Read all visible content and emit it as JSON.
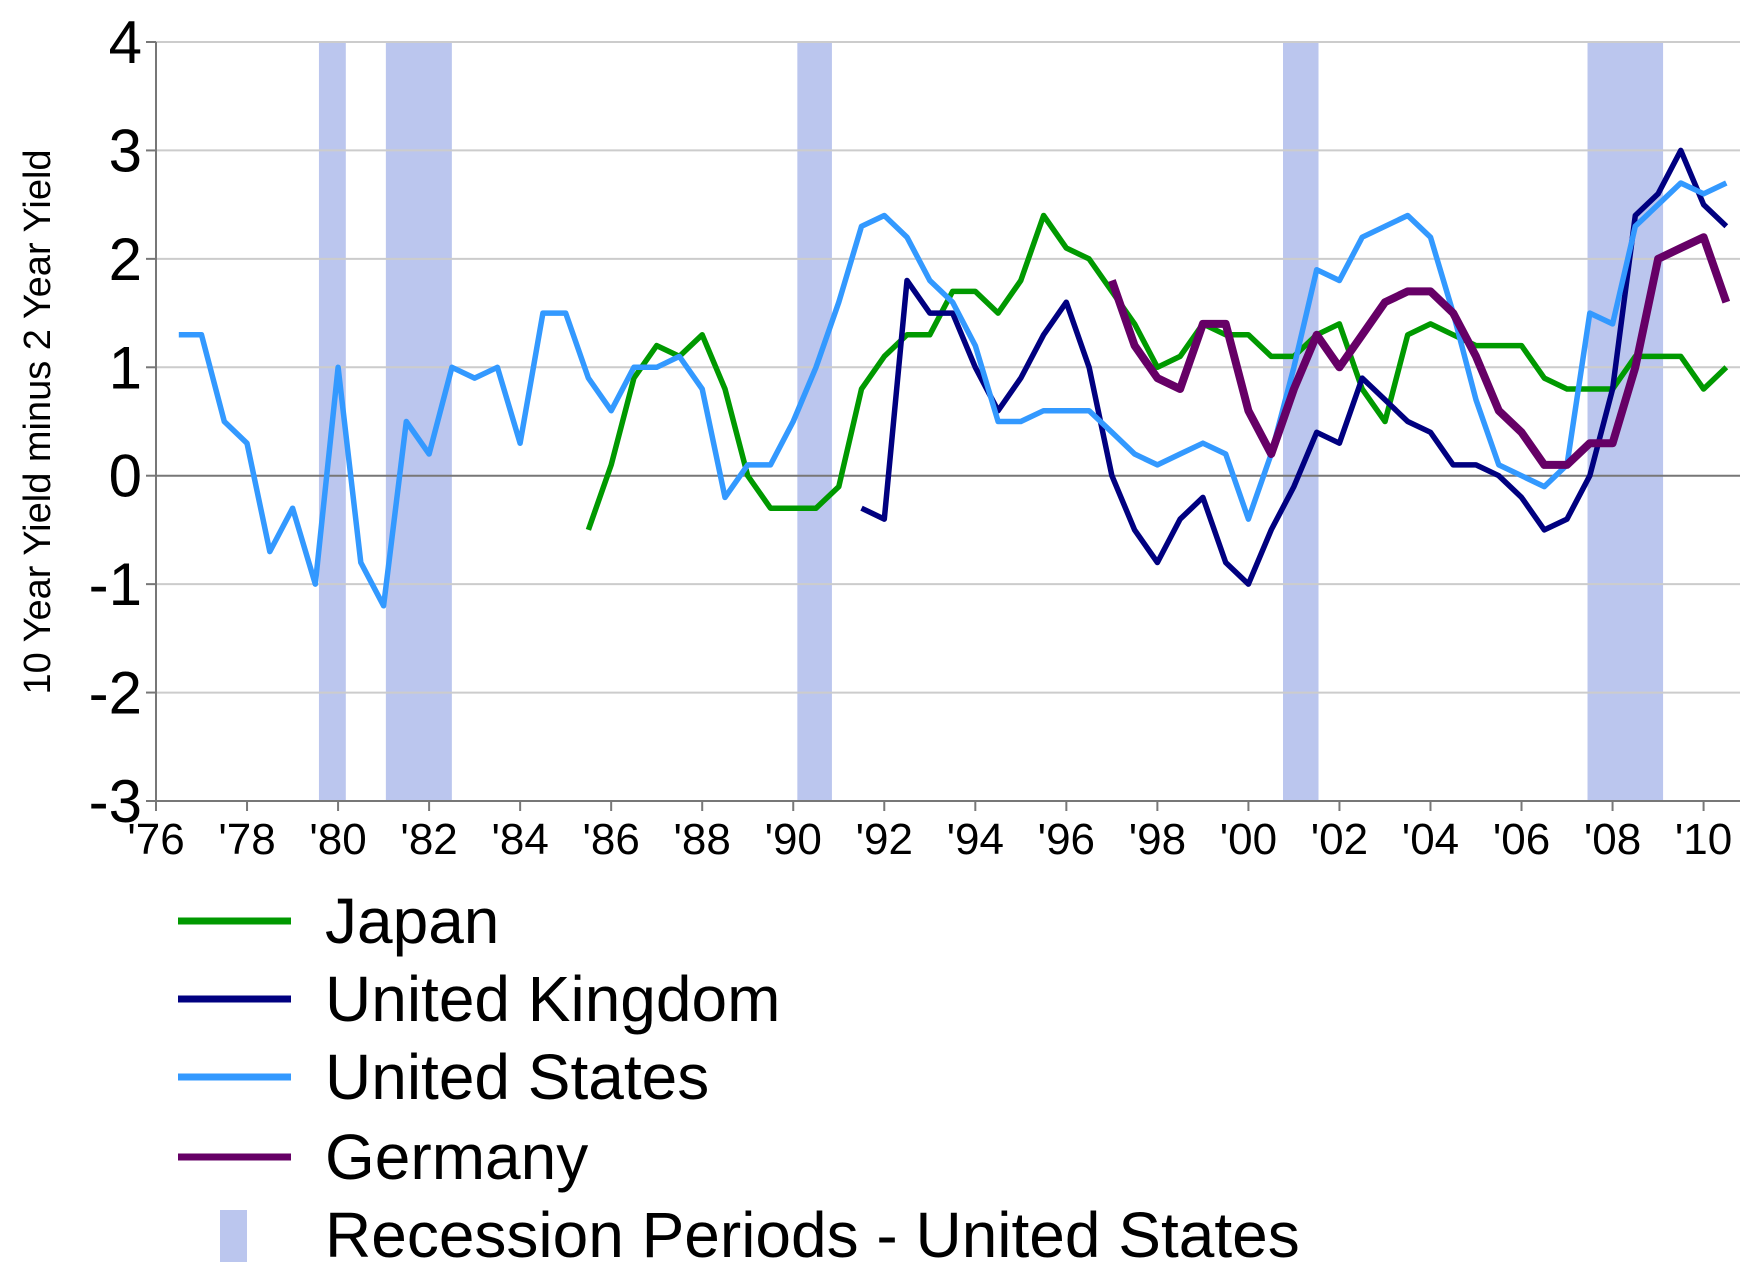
{
  "chart_data": {
    "type": "line",
    "y_label": "10 Year Yield minus 2 Year Yield",
    "xlim": [
      1976,
      2010.8
    ],
    "ylim": [
      -3,
      4
    ],
    "yticks": [
      -3,
      -2,
      -1,
      0,
      1,
      2,
      3,
      4
    ],
    "xticks": [
      {
        "value": 1976,
        "label": "'76"
      },
      {
        "value": 1978,
        "label": "'78"
      },
      {
        "value": 1980,
        "label": "'80"
      },
      {
        "value": 1982,
        "label": "'82"
      },
      {
        "value": 1984,
        "label": "'84"
      },
      {
        "value": 1986,
        "label": "'86"
      },
      {
        "value": 1988,
        "label": "'88"
      },
      {
        "value": 1990,
        "label": "'90"
      },
      {
        "value": 1992,
        "label": "'92"
      },
      {
        "value": 1994,
        "label": "'94"
      },
      {
        "value": 1996,
        "label": "'96"
      },
      {
        "value": 1998,
        "label": "'98"
      },
      {
        "value": 2000,
        "label": "'00"
      },
      {
        "value": 2002,
        "label": "'02"
      },
      {
        "value": 2004,
        "label": "'04"
      },
      {
        "value": 2006,
        "label": "'06"
      },
      {
        "value": 2008,
        "label": "'08"
      },
      {
        "value": 2010,
        "label": "'10"
      }
    ],
    "grid": true,
    "x": [
      1976.5,
      1977,
      1977.5,
      1978,
      1978.5,
      1979,
      1979.5,
      1980,
      1980.5,
      1981,
      1981.5,
      1982,
      1982.5,
      1983,
      1983.5,
      1984,
      1984.5,
      1985,
      1985.5,
      1986,
      1986.5,
      1987,
      1987.5,
      1988,
      1988.5,
      1989,
      1989.5,
      1990,
      1990.5,
      1991,
      1991.5,
      1992,
      1992.5,
      1993,
      1993.5,
      1994,
      1994.5,
      1995,
      1995.5,
      1996,
      1996.5,
      1997,
      1997.5,
      1998,
      1998.5,
      1999,
      1999.5,
      2000,
      2000.5,
      2001,
      2001.5,
      2002,
      2002.5,
      2003,
      2003.5,
      2004,
      2004.5,
      2005,
      2005.5,
      2006,
      2006.5,
      2007,
      2007.5,
      2008,
      2008.5,
      2009,
      2009.5,
      2010,
      2010.5
    ],
    "series": [
      {
        "name": "Japan",
        "color": "#009900",
        "values": [
          null,
          null,
          null,
          null,
          null,
          null,
          null,
          null,
          null,
          null,
          null,
          null,
          null,
          null,
          null,
          null,
          null,
          null,
          -0.5,
          0.1,
          0.9,
          1.2,
          1.1,
          1.3,
          0.8,
          0.0,
          -0.3,
          -0.3,
          -0.3,
          -0.1,
          0.8,
          1.1,
          1.3,
          1.3,
          1.7,
          1.7,
          1.5,
          1.8,
          2.4,
          2.1,
          2.0,
          1.7,
          1.4,
          1.0,
          1.1,
          1.4,
          1.3,
          1.3,
          1.1,
          1.1,
          1.3,
          1.4,
          0.8,
          0.5,
          1.3,
          1.4,
          1.3,
          1.2,
          1.2,
          1.2,
          0.9,
          0.8,
          0.8,
          0.8,
          1.1,
          1.1,
          1.1,
          0.8,
          1.0
        ]
      },
      {
        "name": "United Kingdom",
        "color": "#000080",
        "values": [
          null,
          null,
          null,
          null,
          null,
          null,
          null,
          null,
          null,
          null,
          null,
          null,
          null,
          null,
          null,
          null,
          null,
          null,
          null,
          null,
          null,
          null,
          null,
          null,
          null,
          null,
          null,
          null,
          null,
          null,
          -0.3,
          -0.4,
          1.8,
          1.5,
          1.5,
          1.0,
          0.6,
          0.9,
          1.3,
          1.6,
          1.0,
          0.0,
          -0.5,
          -0.8,
          -0.4,
          -0.2,
          -0.8,
          -1.0,
          -0.5,
          -0.1,
          0.4,
          0.3,
          0.9,
          0.7,
          0.5,
          0.4,
          0.1,
          0.1,
          0.0,
          -0.2,
          -0.5,
          -0.4,
          0.0,
          0.8,
          2.4,
          2.6,
          3.0,
          2.5,
          2.3
        ]
      },
      {
        "name": "United States",
        "color": "#3399ff",
        "values": [
          1.3,
          1.3,
          0.5,
          0.3,
          -0.7,
          -0.3,
          -1.0,
          1.0,
          -0.8,
          -1.2,
          0.5,
          0.2,
          1.0,
          0.9,
          1.0,
          0.3,
          1.5,
          1.5,
          0.9,
          0.6,
          1.0,
          1.0,
          1.1,
          0.8,
          -0.2,
          0.1,
          0.1,
          0.5,
          1.0,
          1.6,
          2.3,
          2.4,
          2.2,
          1.8,
          1.6,
          1.2,
          0.5,
          0.5,
          0.6,
          0.6,
          0.6,
          0.4,
          0.2,
          0.1,
          0.2,
          0.3,
          0.2,
          -0.4,
          0.2,
          1.0,
          1.9,
          1.8,
          2.2,
          2.3,
          2.4,
          2.2,
          1.5,
          0.7,
          0.1,
          0.0,
          -0.1,
          0.1,
          1.5,
          1.4,
          2.3,
          2.5,
          2.7,
          2.6,
          2.7
        ]
      },
      {
        "name": "Germany",
        "color": "#660066",
        "values": [
          null,
          null,
          null,
          null,
          null,
          null,
          null,
          null,
          null,
          null,
          null,
          null,
          null,
          null,
          null,
          null,
          null,
          null,
          null,
          null,
          null,
          null,
          null,
          null,
          null,
          null,
          null,
          null,
          null,
          null,
          null,
          null,
          null,
          null,
          null,
          null,
          null,
          null,
          null,
          null,
          null,
          1.8,
          1.2,
          0.9,
          0.8,
          1.4,
          1.4,
          0.6,
          0.2,
          0.8,
          1.3,
          1.0,
          1.3,
          1.6,
          1.7,
          1.7,
          1.5,
          1.1,
          0.6,
          0.4,
          0.1,
          0.1,
          0.3,
          0.3,
          1.0,
          2.0,
          2.1,
          2.2,
          1.6
        ]
      }
    ],
    "recession_label": "Recession Periods - United States",
    "recession_color": "#bbc6ee",
    "recessions": [
      [
        1979.58,
        1980.17
      ],
      [
        1981.05,
        1982.5
      ],
      [
        1990.09,
        1990.85
      ],
      [
        2000.76,
        2001.54
      ],
      [
        2007.45,
        2009.11
      ]
    ]
  }
}
